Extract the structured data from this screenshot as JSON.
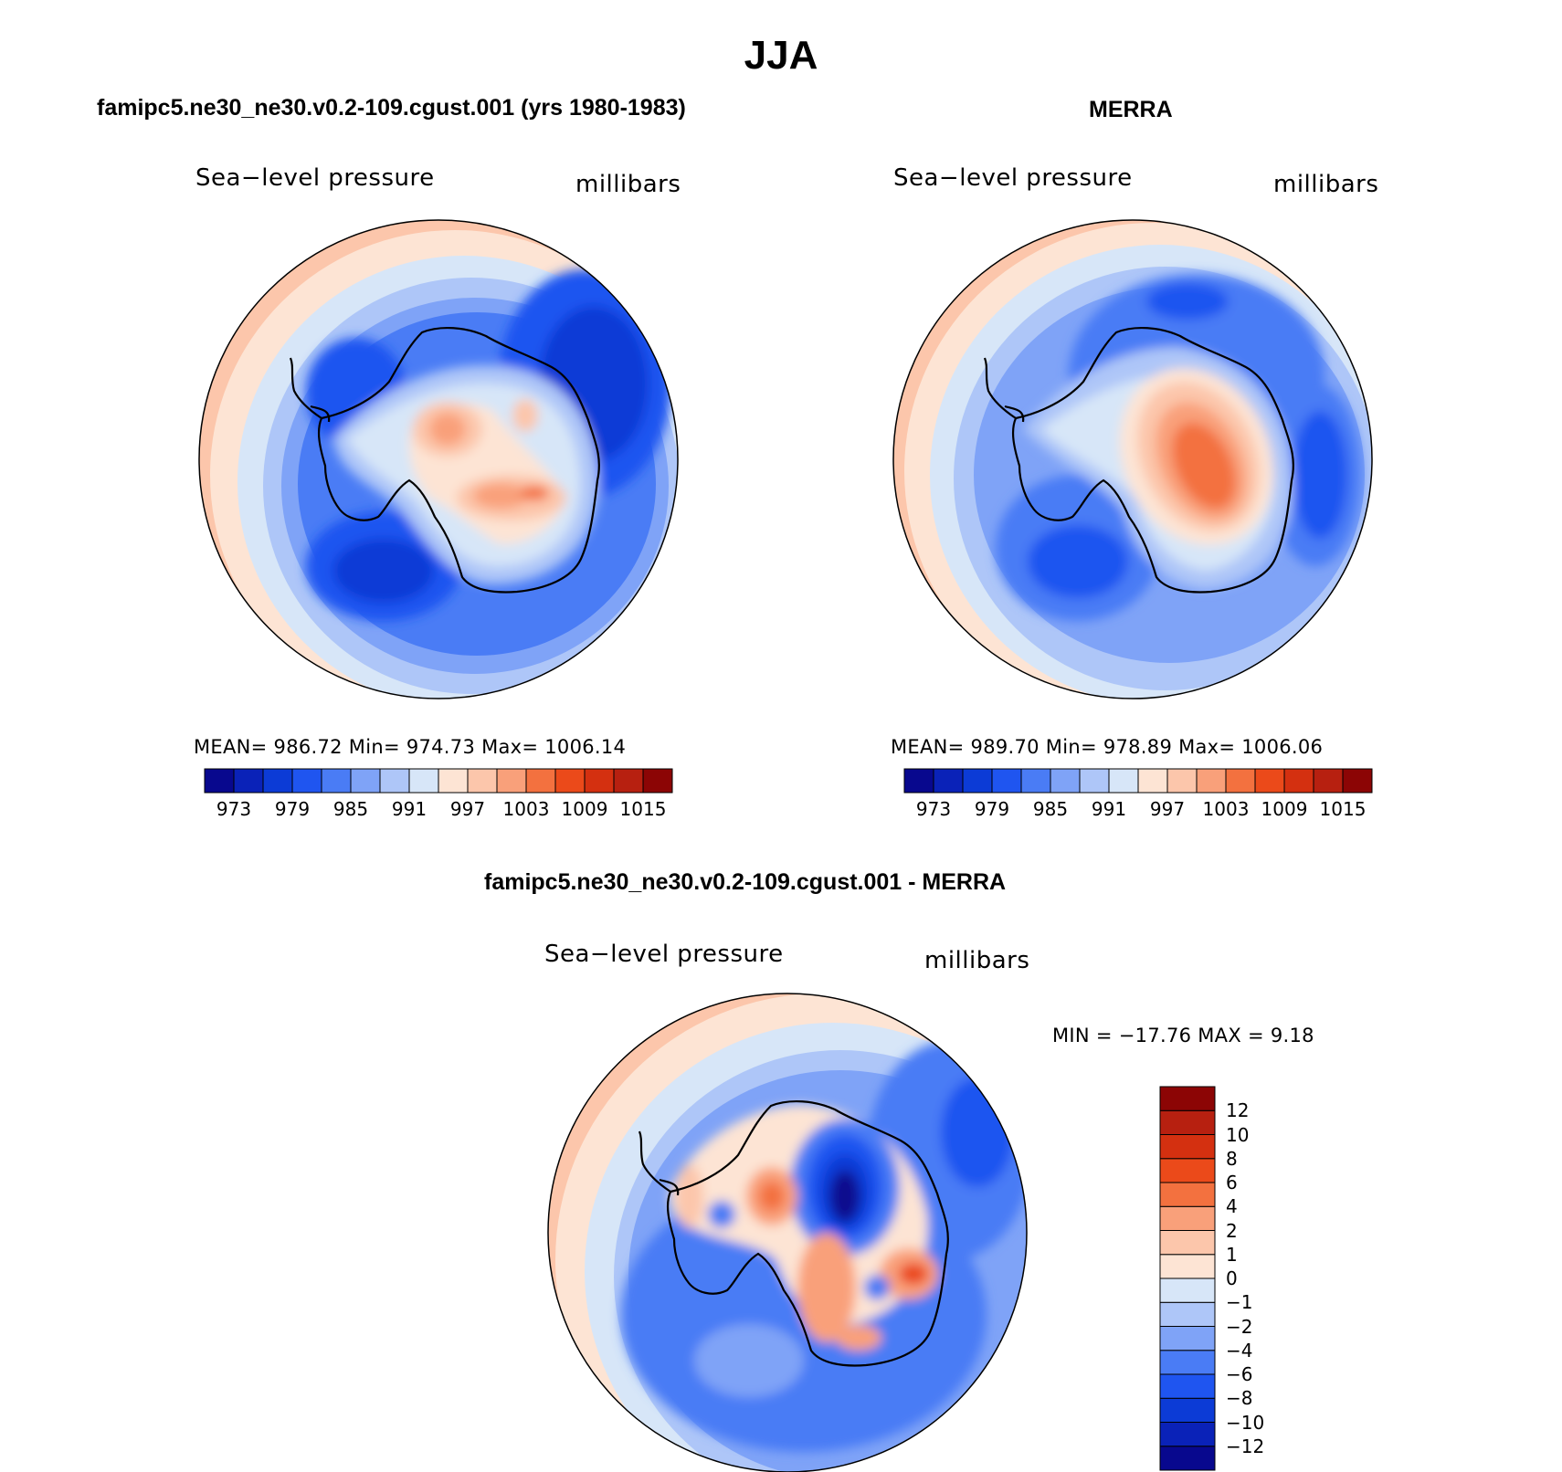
{
  "title": "JJA",
  "panels": [
    {
      "id": "model",
      "title": "famipc5.ne30_ne30.v0.2-109.cgust.001 (yrs 1980-1983)",
      "variable": "Sea−level pressure",
      "units": "millibars",
      "stats_text": "MEAN=  986.72   Min=  974.73   Max=  1006.14",
      "stats": {
        "mean": 986.72,
        "min": 974.73,
        "max": 1006.14
      }
    },
    {
      "id": "obs",
      "title": "MERRA",
      "variable": "Sea−level pressure",
      "units": "millibars",
      "stats_text": "MEAN=  989.70   Min=  978.89   Max=  1006.06",
      "stats": {
        "mean": 989.7,
        "min": 978.89,
        "max": 1006.06
      }
    },
    {
      "id": "diff",
      "title": "famipc5.ne30_ne30.v0.2-109.cgust.001 - MERRA",
      "variable": "Sea−level pressure",
      "units": "millibars",
      "stats_text": "MIN = −17.76 MAX =     9.18",
      "stats": {
        "min": -17.76,
        "max": 9.18
      }
    }
  ],
  "colorbar_main": {
    "colors": [
      "#08088e",
      "#0a22b8",
      "#0c3bd6",
      "#1f55f0",
      "#4a7cf5",
      "#7fa3f7",
      "#aec6f8",
      "#d7e6f8",
      "#fde4d4",
      "#fcc6ab",
      "#f9a07a",
      "#f3713f",
      "#eb4a1a",
      "#d43010",
      "#b72010",
      "#8c0505"
    ],
    "labels": [
      "973",
      "979",
      "985",
      "991",
      "997",
      "1003",
      "1009",
      "1015"
    ]
  },
  "colorbar_diff": {
    "colors": [
      "#08088e",
      "#0a22b8",
      "#0c3bd6",
      "#1f55f0",
      "#4a7cf5",
      "#7fa3f7",
      "#aec6f8",
      "#d7e6f8",
      "#fde4d4",
      "#fcc6ab",
      "#f9a07a",
      "#f3713f",
      "#eb4a1a",
      "#d43010",
      "#b72010",
      "#8c0505"
    ],
    "labels": [
      "−12",
      "−10",
      "−8",
      "−6",
      "−4",
      "−2",
      "−1",
      "0",
      "1",
      "2",
      "4",
      "6",
      "8",
      "10",
      "12"
    ]
  }
}
